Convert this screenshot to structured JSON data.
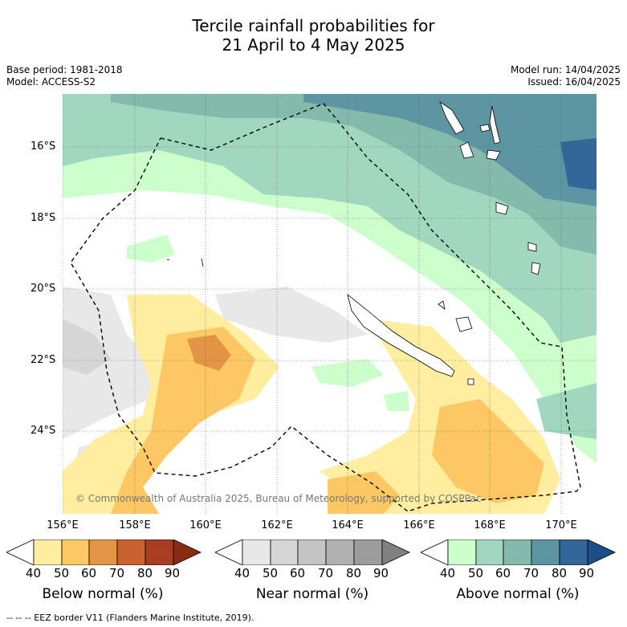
{
  "title": {
    "line1": "Tercile rainfall probabilities for",
    "line2": "21 April to 4 May 2025"
  },
  "meta": {
    "base_period": "Base period: 1981-2018",
    "model": "Model: ACCESS-S2",
    "model_run": "Model run: 14/04/2025",
    "issued": "Issued: 16/04/2025"
  },
  "axes": {
    "lat_labels": [
      "16°S",
      "18°S",
      "20°S",
      "22°S",
      "24°S"
    ],
    "lon_labels": [
      "156°E",
      "158°E",
      "160°E",
      "162°E",
      "164°E",
      "166°E",
      "168°E",
      "170°E"
    ]
  },
  "copyright": "© Commonwealth of Australia 2025, Bureau of Meteorology, supported by COSPPac",
  "colorbars": [
    {
      "title": "Below normal (%)",
      "ticks": [
        "40",
        "50",
        "60",
        "70",
        "80",
        "90"
      ],
      "colors": [
        "#ffffff",
        "#ffeda0",
        "#fdc863",
        "#e39545",
        "#c9622f",
        "#a83d22",
        "#8a2a10"
      ]
    },
    {
      "title": "Near normal (%)",
      "ticks": [
        "40",
        "50",
        "60",
        "70",
        "80",
        "90"
      ],
      "colors": [
        "#ffffff",
        "#e8e8e8",
        "#d6d6d6",
        "#c4c4c4",
        "#b0b0b0",
        "#9c9c9c",
        "#808080"
      ]
    },
    {
      "title": "Above normal (%)",
      "ticks": [
        "40",
        "50",
        "60",
        "70",
        "80",
        "90"
      ],
      "colors": [
        "#ffffff",
        "#ccffcc",
        "#a1d6bf",
        "#84baab",
        "#5e95a2",
        "#336699",
        "#1a4f8a"
      ]
    }
  ],
  "footer": "--  --  -- EEZ border V11 (Flanders Marine Institute, 2019)."
}
